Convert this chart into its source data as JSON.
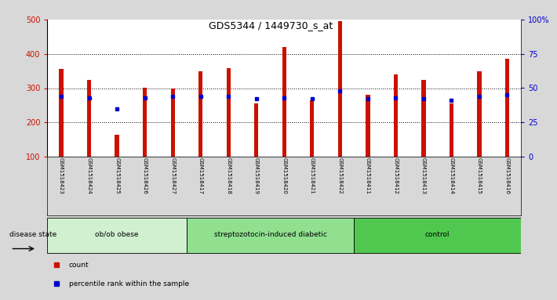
{
  "title": "GDS5344 / 1449730_s_at",
  "samples": [
    "GSM1518423",
    "GSM1518424",
    "GSM1518425",
    "GSM1518426",
    "GSM1518427",
    "GSM1518417",
    "GSM1518418",
    "GSM1518419",
    "GSM1518420",
    "GSM1518421",
    "GSM1518422",
    "GSM1518411",
    "GSM1518412",
    "GSM1518413",
    "GSM1518414",
    "GSM1518415",
    "GSM1518416"
  ],
  "counts": [
    355,
    325,
    163,
    300,
    298,
    348,
    358,
    255,
    420,
    265,
    495,
    280,
    340,
    323,
    255,
    348,
    385
  ],
  "percentile_ranks": [
    44,
    43,
    35,
    43,
    44,
    44,
    44,
    42,
    43,
    42,
    48,
    42,
    43,
    42,
    41,
    44,
    45
  ],
  "groups": [
    {
      "label": "ob/ob obese",
      "start": 0,
      "end": 5
    },
    {
      "label": "streptozotocin-induced diabetic",
      "start": 5,
      "end": 11
    },
    {
      "label": "control",
      "start": 11,
      "end": 17
    }
  ],
  "group_colors": [
    "#d0f0d0",
    "#90e090",
    "#50c850"
  ],
  "bar_color": "#cc1100",
  "marker_color": "#0000cc",
  "ymin": 100,
  "ymax": 500,
  "yticks_left": [
    100,
    200,
    300,
    400,
    500
  ],
  "yticks_right": [
    0,
    25,
    50,
    75,
    100
  ],
  "bg_color": "#d8d8d8",
  "plot_bg": "#ffffff",
  "disease_state_label": "disease state",
  "bar_width": 0.15
}
